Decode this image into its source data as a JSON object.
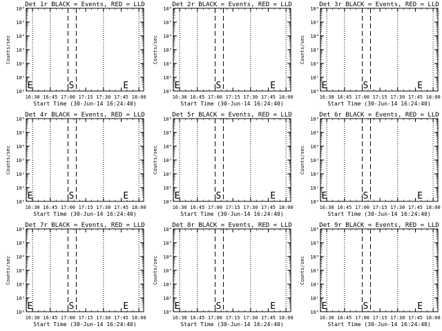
{
  "chart_data": [
    {
      "type": "line",
      "title": "Det 1r BLACK = Events, RED = LLD",
      "xlabel": "Start Time (30-Jun-14 16:24:40)",
      "ylabel": "Counts/sec",
      "x_ticks": [
        "16:30",
        "16:45",
        "17:00",
        "17:15",
        "17:30",
        "17:45",
        "18:00"
      ],
      "y_ticks": [
        "10⁰",
        "10¹",
        "10²",
        "10³",
        "10⁴",
        "10⁵",
        "10⁶"
      ],
      "y_scale": "log",
      "ylim": [
        1,
        1000000
      ],
      "xlim": [
        "16:24:40",
        "18:04:00"
      ],
      "series": [],
      "dotted_lines": [
        "16:30",
        "16:45",
        "17:30",
        "18:00"
      ],
      "dashed_lines": [
        "17:00",
        "17:07"
      ],
      "markers": [
        {
          "label": "E",
          "x": "16:25"
        },
        {
          "label": "S",
          "x": "17:00"
        },
        {
          "label": "E",
          "x": "17:46"
        }
      ]
    },
    {
      "type": "line",
      "title": "Det 2r BLACK = Events, RED = LLD",
      "xlabel": "Start Time (30-Jun-14 16:24:40)",
      "ylabel": "Counts/sec",
      "x_ticks": [
        "16:30",
        "16:45",
        "17:00",
        "17:15",
        "17:30",
        "17:45",
        "18:00"
      ],
      "y_ticks": [
        "10⁰",
        "10¹",
        "10²",
        "10³",
        "10⁴",
        "10⁵",
        "10⁶"
      ],
      "y_scale": "log",
      "ylim": [
        1,
        1000000
      ],
      "xlim": [
        "16:24:40",
        "18:04:00"
      ],
      "series": [],
      "dotted_lines": [
        "16:30",
        "16:45",
        "17:30",
        "18:00"
      ],
      "dashed_lines": [
        "17:00",
        "17:07"
      ],
      "markers": [
        {
          "label": "E",
          "x": "16:25"
        },
        {
          "label": "S",
          "x": "17:00"
        },
        {
          "label": "E",
          "x": "17:46"
        }
      ]
    },
    {
      "type": "line",
      "title": "Det 3r BLACK = Events, RED = LLD",
      "xlabel": "Start Time (30-Jun-14 16:24:40)",
      "ylabel": "Counts/sec",
      "x_ticks": [
        "16:30",
        "16:45",
        "17:00",
        "17:15",
        "17:30",
        "17:45",
        "18:00"
      ],
      "y_ticks": [
        "10⁰",
        "10¹",
        "10²",
        "10³",
        "10⁴",
        "10⁵",
        "10⁶"
      ],
      "y_scale": "log",
      "ylim": [
        1,
        1000000
      ],
      "xlim": [
        "16:24:40",
        "18:04:00"
      ],
      "series": [],
      "dotted_lines": [
        "16:30",
        "16:45",
        "17:30",
        "18:00"
      ],
      "dashed_lines": [
        "17:00",
        "17:07"
      ],
      "markers": [
        {
          "label": "E",
          "x": "16:25"
        },
        {
          "label": "S",
          "x": "17:00"
        },
        {
          "label": "E",
          "x": "17:46"
        }
      ]
    },
    {
      "type": "line",
      "title": "Det 4r BLACK = Events, RED = LLD",
      "xlabel": "Start Time (30-Jun-14 16:24:40)",
      "ylabel": "Counts/sec",
      "x_ticks": [
        "16:30",
        "16:45",
        "17:00",
        "17:15",
        "17:30",
        "17:45",
        "18:00"
      ],
      "y_ticks": [
        "10⁰",
        "10¹",
        "10²",
        "10³",
        "10⁴",
        "10⁵",
        "10⁶"
      ],
      "y_scale": "log",
      "ylim": [
        1,
        1000000
      ],
      "xlim": [
        "16:24:40",
        "18:04:00"
      ],
      "series": [],
      "dotted_lines": [
        "16:30",
        "16:45",
        "17:30",
        "18:00"
      ],
      "dashed_lines": [
        "17:00",
        "17:07"
      ],
      "markers": [
        {
          "label": "E",
          "x": "16:25"
        },
        {
          "label": "S",
          "x": "17:00"
        },
        {
          "label": "E",
          "x": "17:46"
        }
      ]
    },
    {
      "type": "line",
      "title": "Det 5r BLACK = Events, RED = LLD",
      "xlabel": "Start Time (30-Jun-14 16:24:40)",
      "ylabel": "Counts/sec",
      "x_ticks": [
        "16:30",
        "16:45",
        "17:00",
        "17:15",
        "17:30",
        "17:45",
        "18:00"
      ],
      "y_ticks": [
        "10⁰",
        "10¹",
        "10²",
        "10³",
        "10⁴",
        "10⁵",
        "10⁶"
      ],
      "y_scale": "log",
      "ylim": [
        1,
        1000000
      ],
      "xlim": [
        "16:24:40",
        "18:04:00"
      ],
      "series": [],
      "dotted_lines": [
        "16:30",
        "16:45",
        "17:30",
        "18:00"
      ],
      "dashed_lines": [
        "17:00",
        "17:07"
      ],
      "markers": [
        {
          "label": "E",
          "x": "16:25"
        },
        {
          "label": "S",
          "x": "17:00"
        },
        {
          "label": "E",
          "x": "17:46"
        }
      ]
    },
    {
      "type": "line",
      "title": "Det 6r BLACK = Events, RED = LLD",
      "xlabel": "Start Time (30-Jun-14 16:24:40)",
      "ylabel": "Counts/sec",
      "x_ticks": [
        "16:30",
        "16:45",
        "17:00",
        "17:15",
        "17:30",
        "17:45",
        "18:00"
      ],
      "y_ticks": [
        "10⁰",
        "10¹",
        "10²",
        "10³",
        "10⁴",
        "10⁵",
        "10⁶"
      ],
      "y_scale": "log",
      "ylim": [
        1,
        1000000
      ],
      "xlim": [
        "16:24:40",
        "18:04:00"
      ],
      "series": [],
      "dotted_lines": [
        "16:30",
        "16:45",
        "17:30",
        "18:00"
      ],
      "dashed_lines": [
        "17:00",
        "17:07"
      ],
      "markers": [
        {
          "label": "E",
          "x": "16:25"
        },
        {
          "label": "S",
          "x": "17:00"
        },
        {
          "label": "E",
          "x": "17:46"
        }
      ]
    },
    {
      "type": "line",
      "title": "Det 7r BLACK = Events, RED = LLD",
      "xlabel": "Start Time (30-Jun-14 16:24:40)",
      "ylabel": "Counts/sec",
      "x_ticks": [
        "16:30",
        "16:45",
        "17:00",
        "17:15",
        "17:30",
        "17:45",
        "18:00"
      ],
      "y_ticks": [
        "10⁰",
        "10¹",
        "10²",
        "10³",
        "10⁴",
        "10⁵",
        "10⁶"
      ],
      "y_scale": "log",
      "ylim": [
        1,
        1000000
      ],
      "xlim": [
        "16:24:40",
        "18:04:00"
      ],
      "series": [],
      "dotted_lines": [
        "16:30",
        "16:45",
        "17:30",
        "18:00"
      ],
      "dashed_lines": [
        "17:00",
        "17:07"
      ],
      "markers": [
        {
          "label": "E",
          "x": "16:25"
        },
        {
          "label": "S",
          "x": "17:00"
        },
        {
          "label": "E",
          "x": "17:46"
        }
      ]
    },
    {
      "type": "line",
      "title": "Det 8r BLACK = Events, RED = LLD",
      "xlabel": "Start Time (30-Jun-14 16:24:40)",
      "ylabel": "Counts/sec",
      "x_ticks": [
        "16:30",
        "16:45",
        "17:00",
        "17:15",
        "17:30",
        "17:45",
        "18:00"
      ],
      "y_ticks": [
        "10⁰",
        "10¹",
        "10²",
        "10³",
        "10⁴",
        "10⁵",
        "10⁶"
      ],
      "y_scale": "log",
      "ylim": [
        1,
        1000000
      ],
      "xlim": [
        "16:24:40",
        "18:04:00"
      ],
      "series": [],
      "dotted_lines": [
        "16:30",
        "16:45",
        "17:30",
        "18:00"
      ],
      "dashed_lines": [
        "17:00",
        "17:07"
      ],
      "markers": [
        {
          "label": "E",
          "x": "16:25"
        },
        {
          "label": "S",
          "x": "17:00"
        },
        {
          "label": "E",
          "x": "17:46"
        }
      ]
    },
    {
      "type": "line",
      "title": "Det 9r BLACK = Events, RED = LLD",
      "xlabel": "Start Time (30-Jun-14 16:24:40)",
      "ylabel": "Counts/sec",
      "x_ticks": [
        "16:30",
        "16:45",
        "17:00",
        "17:15",
        "17:30",
        "17:45",
        "18:00"
      ],
      "y_ticks": [
        "10⁰",
        "10¹",
        "10²",
        "10³",
        "10⁴",
        "10⁵",
        "10⁶"
      ],
      "y_scale": "log",
      "ylim": [
        1,
        1000000
      ],
      "xlim": [
        "16:24:40",
        "18:04:00"
      ],
      "series": [],
      "dotted_lines": [
        "16:30",
        "16:45",
        "17:30",
        "18:00"
      ],
      "dashed_lines": [
        "17:00",
        "17:07"
      ],
      "markers": [
        {
          "label": "E",
          "x": "16:25"
        },
        {
          "label": "S",
          "x": "17:00"
        },
        {
          "label": "E",
          "x": "17:46"
        }
      ]
    }
  ]
}
